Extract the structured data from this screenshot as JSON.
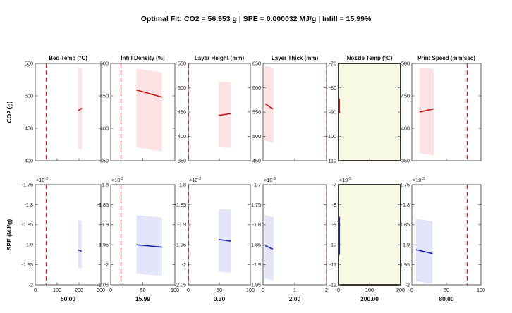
{
  "chart_data": {
    "type": "line",
    "title": "Optimal Fit: CO2 = 56.953 g | SPE = 0.000032 MJ/g | Infill = 15.99%",
    "legend": "red dashed vertical line = optimal setting; shaded region = confidence band; solid segment = local fit",
    "columns": [
      {
        "key": "bed-temp",
        "title": "Bed Temp (°C)",
        "optimal": "50.00"
      },
      {
        "key": "infill-density",
        "title": "Infill Density (%)",
        "optimal": "15.99"
      },
      {
        "key": "layer-height",
        "title": "Layer Height (mm)",
        "optimal": "0.30"
      },
      {
        "key": "layer-thick",
        "title": "Layer Thick (mm)",
        "optimal": "2.00"
      },
      {
        "key": "nozzle-temp",
        "title": "Nozzle Temp (°C)",
        "optimal": "200.00"
      },
      {
        "key": "print-speed",
        "title": "Print Speed (mm/sec)",
        "optimal": "80.00"
      }
    ],
    "rows": [
      {
        "ylabel": "CO2 (g)",
        "color": "#cc1a1a",
        "band_color": "#fbe3e3",
        "cells": [
          {
            "xlim": [
              0,
              300
            ],
            "xticks": [
              "0",
              "100",
              "200",
              "300"
            ],
            "ylim": [
              400,
              550
            ],
            "yticks": [
              "400",
              "450",
              "500",
              "550"
            ],
            "dash_x": 50,
            "band": [
              [
                196,
                545
              ],
              [
                214,
                543
              ],
              [
                214,
                417
              ],
              [
                196,
                419
              ]
            ],
            "line": {
              "x": [
                196,
                214
              ],
              "y": [
                477,
                481
              ]
            }
          },
          {
            "xlim": [
              0,
              100
            ],
            "xticks": [
              "0",
              "50",
              "100"
            ],
            "ylim": [
              350,
              500
            ],
            "yticks": [
              "350",
              "400",
              "450",
              "500"
            ],
            "dash_x": 16,
            "band": [
              [
                40,
                492
              ],
              [
                80,
                486
              ],
              [
                80,
                364
              ],
              [
                40,
                371
              ]
            ],
            "line": {
              "x": [
                40,
                80
              ],
              "y": [
                459,
                448
              ]
            }
          },
          {
            "xlim": [
              0,
              100
            ],
            "xticks": [
              "0",
              "50",
              "100"
            ],
            "ylim": [
              350,
              550
            ],
            "yticks": [
              "350",
              "400",
              "450",
              "500",
              "550"
            ],
            "dash_x": 0.5,
            "band": [
              [
                49,
                512
              ],
              [
                69,
                511
              ],
              [
                69,
                376
              ],
              [
                49,
                380
              ]
            ],
            "line": {
              "x": [
                49,
                69
              ],
              "y": [
                443,
                447
              ]
            }
          },
          {
            "xlim": [
              0,
              2
            ],
            "xticks": [
              "0",
              "1",
              "2"
            ],
            "ylim": [
              450,
              650
            ],
            "yticks": [
              "450",
              "500",
              "550",
              "600",
              "650"
            ],
            "dash_x": 2,
            "band": [
              [
                0.05,
                646
              ],
              [
                0.33,
                641
              ],
              [
                0.33,
                486
              ],
              [
                0.05,
                492
              ]
            ],
            "line": {
              "x": [
                0.07,
                0.31
              ],
              "y": [
                567,
                556
              ]
            }
          },
          {
            "xlim": [
              0,
              200
            ],
            "xticks": [
              "0",
              "100",
              "200"
            ],
            "ylim": [
              -110,
              -70
            ],
            "yticks": [
              "-110",
              "-100",
              "-90",
              "-80",
              "-70"
            ],
            "highlight": true,
            "vseg": {
              "x": 2,
              "y": [
                -84.5,
                -90.5
              ]
            }
          },
          {
            "xlim": [
              0,
              100
            ],
            "xticks": [
              "0",
              "50",
              "100"
            ],
            "ylim": [
              350,
              500
            ],
            "yticks": [
              "350",
              "400",
              "450",
              "500"
            ],
            "dash_x": 80,
            "band": [
              [
                11,
                494
              ],
              [
                32,
                492
              ],
              [
                32,
                358
              ],
              [
                11,
                362
              ]
            ],
            "line": {
              "x": [
                11,
                32
              ],
              "y": [
                425,
                430
              ]
            }
          }
        ]
      },
      {
        "ylabel": "SPE (MJ/g)",
        "color": "#1f2bb2",
        "band_color": "#e2e5f8",
        "cells": [
          {
            "mult": "-3",
            "xlim": [
              0,
              300
            ],
            "xticks": [
              "0",
              "100",
              "200",
              "300"
            ],
            "ylim": [
              -2,
              -1.75
            ],
            "yticks": [
              "-2",
              "-1.95",
              "-1.9",
              "-1.85",
              "-1.8",
              "-1.75"
            ],
            "dash_x": 50,
            "band": [
              [
                196,
                -1.838
              ],
              [
                212,
                -1.84
              ],
              [
                212,
                -1.96
              ],
              [
                196,
                -1.957
              ]
            ],
            "line": {
              "x": [
                196,
                212
              ],
              "y": [
                -1.913,
                -1.916
              ]
            }
          },
          {
            "mult": "-3",
            "xlim": [
              0,
              100
            ],
            "xticks": [
              "0",
              "50",
              "100"
            ],
            "ylim": [
              -2.05,
              -1.8
            ],
            "yticks": [
              "-2.05",
              "-2",
              "-1.95",
              "-1.9",
              "-1.85",
              "-1.8"
            ],
            "dash_x": 16,
            "band": [
              [
                40,
                -1.876
              ],
              [
                80,
                -1.882
              ],
              [
                80,
                -2.028
              ],
              [
                40,
                -2.022
              ]
            ],
            "line": {
              "x": [
                40,
                80
              ],
              "y": [
                -1.95,
                -1.956
              ]
            }
          },
          {
            "mult": "-3",
            "xlim": [
              0,
              100
            ],
            "xticks": [
              "0",
              "50",
              "100"
            ],
            "ylim": [
              -2.05,
              -1.8
            ],
            "yticks": [
              "-2.05",
              "-2",
              "-1.95",
              "-1.9",
              "-1.85",
              "-1.8"
            ],
            "dash_x": 0.5,
            "band": [
              [
                49,
                -1.861
              ],
              [
                69,
                -1.862
              ],
              [
                69,
                -2.02
              ],
              [
                49,
                -2.017
              ]
            ],
            "line": {
              "x": [
                49,
                69
              ],
              "y": [
                -1.937,
                -1.941
              ]
            }
          },
          {
            "mult": "-3",
            "xlim": [
              0,
              2
            ],
            "xticks": [
              "0",
              "1",
              "2"
            ],
            "ylim": [
              -1.95,
              -1.7
            ],
            "yticks": [
              "-1.95",
              "-1.9",
              "-1.85",
              "-1.8",
              "-1.75",
              "-1.7"
            ],
            "dash_x": 2,
            "band": [
              [
                0.05,
                -1.776
              ],
              [
                0.33,
                -1.781
              ],
              [
                0.33,
                -1.94
              ],
              [
                0.05,
                -1.934
              ]
            ],
            "line": {
              "x": [
                0.07,
                0.31
              ],
              "y": [
                -1.852,
                -1.861
              ]
            }
          },
          {
            "mult": "-5",
            "xlim": [
              0,
              200
            ],
            "xticks": [
              "0",
              "100",
              "200"
            ],
            "ylim": [
              -12,
              -7
            ],
            "yticks": [
              "-12",
              "-11",
              "-10",
              "-9",
              "-8",
              "-7"
            ],
            "highlight": true,
            "vseg": {
              "x": 2,
              "y": [
                -8.6,
                -10.5
              ]
            }
          },
          {
            "mult": "-3",
            "xlim": [
              0,
              100
            ],
            "xticks": [
              "0",
              "50",
              "100"
            ],
            "ylim": [
              -2,
              -1.75
            ],
            "yticks": [
              "-2",
              "-1.95",
              "-1.9",
              "-1.85",
              "-1.8",
              "-1.75"
            ],
            "dash_x": 80,
            "band": [
              [
                6,
                -1.835
              ],
              [
                30,
                -1.841
              ],
              [
                30,
                -1.998
              ],
              [
                6,
                -1.991
              ]
            ],
            "line": {
              "x": [
                6,
                30
              ],
              "y": [
                -1.912,
                -1.922
              ]
            }
          }
        ]
      }
    ],
    "styles": {
      "mult_base": "×10",
      "dash_color": "#e32222",
      "highlight_bg": "#fafae4",
      "highlight_border": "#111111",
      "box_border": "#5a5a5a",
      "tick_color": "#1a1a1a"
    }
  }
}
